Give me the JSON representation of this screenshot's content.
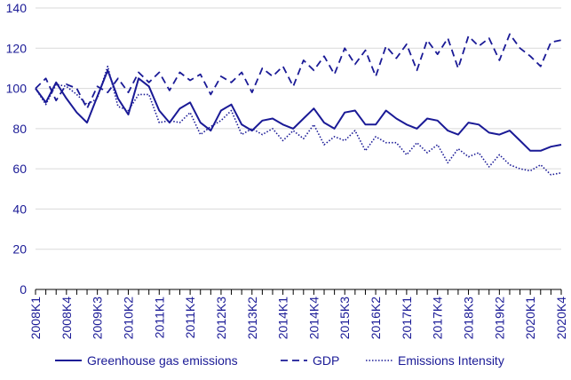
{
  "chart_data": {
    "type": "line",
    "categories": [
      "2008K1",
      "2008K2",
      "2008K3",
      "2008K4",
      "2009K1",
      "2009K2",
      "2009K3",
      "2009K4",
      "2010K1",
      "2010K2",
      "2010K3",
      "2010K4",
      "2011K1",
      "2011K2",
      "2011K3",
      "2011K4",
      "2012K1",
      "2012K2",
      "2012K3",
      "2012K4",
      "2013K1",
      "2013K2",
      "2013K3",
      "2013K4",
      "2014K1",
      "2014K2",
      "2014K3",
      "2014K4",
      "2015K1",
      "2015K2",
      "2015K3",
      "2015K4",
      "2016K1",
      "2016K2",
      "2016K3",
      "2016K4",
      "2017K1",
      "2017K2",
      "2017K3",
      "2017K4",
      "2018K1",
      "2018K2",
      "2018K3",
      "2018K4",
      "2019K1",
      "2019K2",
      "2019K3",
      "2019K4",
      "2020K1",
      "2020K2",
      "2020K3",
      "2020K4"
    ],
    "tick_labels": [
      "2008K1",
      "2008K4",
      "2009K3",
      "2010K2",
      "2011K1",
      "2011K4",
      "2012K3",
      "2013K2",
      "2014K1",
      "2014K4",
      "2015K3",
      "2016K2",
      "2017K1",
      "2017K4",
      "2018K3",
      "2019K2",
      "2020K1",
      "2020K4"
    ],
    "y_ticks": [
      0,
      20,
      40,
      60,
      80,
      100,
      120,
      140
    ],
    "ylim": [
      0,
      140
    ],
    "grid": "horizontal",
    "legend_position": "bottom",
    "series": [
      {
        "name": "Greenhouse gas emissions",
        "style": "solid",
        "values": [
          100,
          93,
          103,
          95,
          88,
          83,
          96,
          109,
          95,
          87,
          105,
          101,
          89,
          83,
          90,
          93,
          83,
          79,
          89,
          92,
          82,
          79,
          84,
          85,
          82,
          80,
          85,
          90,
          83,
          80,
          88,
          89,
          82,
          82,
          89,
          85,
          82,
          80,
          85,
          84,
          79,
          77,
          83,
          82,
          78,
          77,
          79,
          74,
          69,
          69,
          71,
          72
        ]
      },
      {
        "name": "GDP",
        "style": "dashed",
        "values": [
          100,
          105,
          94,
          102,
          100,
          90,
          101,
          98,
          105,
          98,
          108,
          103,
          108,
          99,
          108,
          104,
          107,
          97,
          106,
          103,
          108,
          98,
          110,
          106,
          111,
          101,
          114,
          109,
          116,
          107,
          120,
          112,
          119,
          106,
          121,
          115,
          122,
          109,
          124,
          117,
          125,
          110,
          126,
          121,
          125,
          114,
          127,
          120,
          116,
          111,
          123,
          124
        ]
      },
      {
        "name": "Emissions Intensity",
        "style": "dotted",
        "values": [
          100,
          92,
          102,
          101,
          97,
          92,
          95,
          111,
          91,
          89,
          97,
          97,
          83,
          84,
          83,
          88,
          77,
          81,
          84,
          89,
          77,
          80,
          77,
          80,
          74,
          79,
          75,
          82,
          72,
          76,
          74,
          79,
          69,
          76,
          73,
          73,
          67,
          73,
          68,
          72,
          63,
          70,
          66,
          68,
          61,
          67,
          62,
          60,
          59,
          62,
          57,
          58
        ]
      }
    ],
    "colors": {
      "line": "#1a1a96",
      "axis_text": "#1a1a96",
      "grid": "#d9d9d9",
      "axis": "#000000"
    }
  }
}
